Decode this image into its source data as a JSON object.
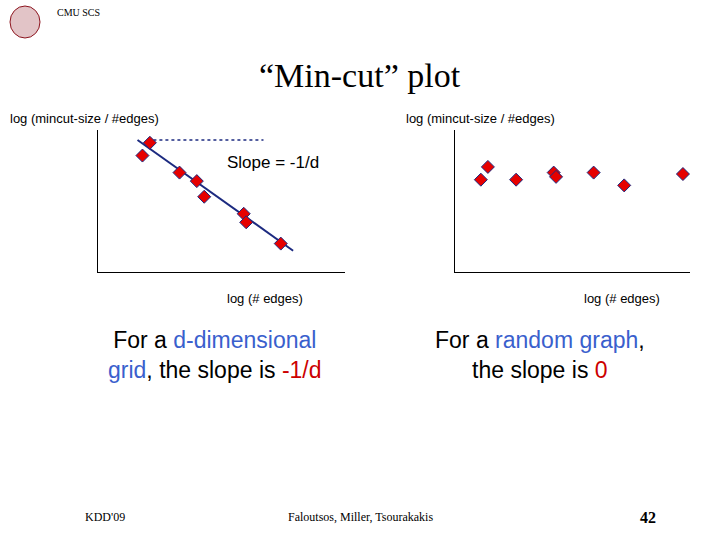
{
  "slide": {
    "header": "CMU SCS",
    "title": "“Min-cut” plot",
    "footer": [
      "KDD'09",
      "Faloutsos, Miller, Tsourakakis",
      "42"
    ]
  },
  "chart_data": [
    {
      "type": "scatter",
      "xlabel": "log (# edges)",
      "ylabel": "log (mincut-size / #edges)",
      "xlim": [
        0,
        10
      ],
      "ylim": [
        0,
        10
      ],
      "tick_labels": false,
      "grid": false,
      "annotations": [
        {
          "text": "Slope = -1/d",
          "x": 7.1,
          "y": 7.7
        }
      ],
      "caption": [
        [
          {
            "text": "For a ",
            "color": "#000000"
          },
          {
            "text": "d-dimensional",
            "color": "#3a5fcd"
          }
        ],
        [
          {
            "text": "grid",
            "color": "#3a5fcd"
          },
          {
            "text": ", the slope is ",
            "color": "#000000"
          },
          {
            "text": "-1/d",
            "color": "#cc0000"
          }
        ]
      ],
      "series": [
        {
          "type": "line",
          "color": "#1c2a80",
          "line_style": "solid",
          "x": [
            1.6,
            7.9
          ],
          "values": [
            9.3,
            1.5
          ]
        },
        {
          "type": "line",
          "color": "#1c2a80",
          "line_style": "dotted",
          "x": [
            2.0,
            6.7
          ],
          "values": [
            9.3,
            9.3
          ]
        },
        {
          "type": "scatter",
          "color": "#e60000",
          "marker": "diamond",
          "x": [
            1.8,
            2.1,
            3.3,
            4.0,
            4.3,
            5.9,
            6.0,
            7.4
          ],
          "values": [
            8.2,
            9.1,
            7.0,
            6.4,
            5.3,
            4.1,
            3.5,
            2.0
          ]
        }
      ]
    },
    {
      "type": "scatter",
      "xlabel": "log (# edges)",
      "ylabel": "log (mincut-size / #edges)",
      "xlim": [
        0,
        10
      ],
      "ylim": [
        0,
        10
      ],
      "tick_labels": false,
      "grid": false,
      "caption": [
        [
          {
            "text": "For a ",
            "color": "#000000"
          },
          {
            "text": "random graph",
            "color": "#3a5fcd"
          },
          {
            "text": ",",
            "color": "#000000"
          }
        ],
        [
          {
            "text": "the slope is ",
            "color": "#000000"
          },
          {
            "text": "0",
            "color": "#cc0000"
          }
        ]
      ],
      "series": [
        {
          "type": "scatter",
          "color": "#e60000",
          "marker": "diamond",
          "x": [
            1.4,
            1.1,
            2.6,
            4.2,
            4.3,
            5.9,
            7.2,
            9.7
          ],
          "values": [
            7.4,
            6.5,
            6.5,
            7.0,
            6.7,
            7.0,
            6.1,
            6.9
          ]
        }
      ]
    }
  ]
}
